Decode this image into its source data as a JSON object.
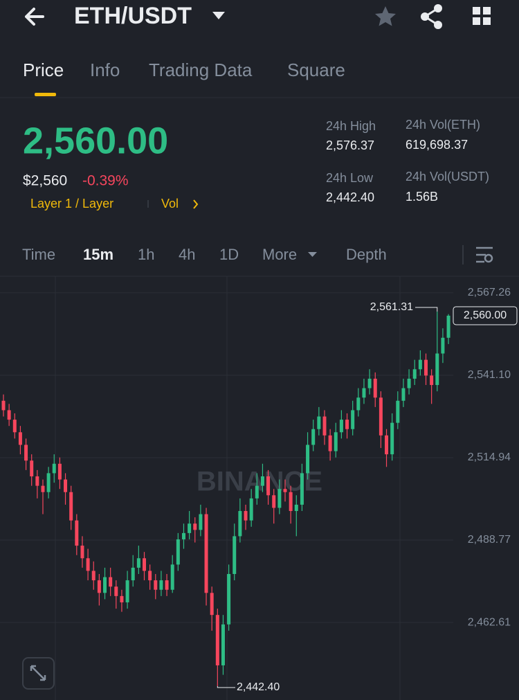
{
  "header": {
    "pair": "ETH/USDT"
  },
  "tabs": [
    "Price",
    "Info",
    "Trading Data",
    "Square"
  ],
  "price": {
    "last": "2,560.00",
    "fiat": "$2,560",
    "change": "-0.39%",
    "tags": [
      "Layer 1 / Layer",
      "Vol"
    ]
  },
  "stats": [
    {
      "label": "24h High",
      "value": "2,576.37"
    },
    {
      "label": "24h Vol(ETH)",
      "value": "619,698.37"
    },
    {
      "label": "24h Low",
      "value": "2,442.40"
    },
    {
      "label": "24h Vol(USDT)",
      "value": "1.56B"
    }
  ],
  "timeframes": [
    "Time",
    "15m",
    "1h",
    "4h",
    "1D",
    "More",
    "Depth"
  ],
  "watermark": "BINANCE",
  "chart_data": {
    "type": "candlestick",
    "up_color": "#2ebd85",
    "down_color": "#f6465d",
    "grid": true,
    "ylim": [
      2438,
      2572.3
    ],
    "yticks": [
      {
        "value": 2462.61,
        "label": "2,462.61"
      },
      {
        "value": 2488.77,
        "label": "2,488.77"
      },
      {
        "value": 2514.94,
        "label": "2,514.94"
      },
      {
        "value": 2541.1,
        "label": "2,541.10"
      },
      {
        "value": 2567.26,
        "label": "2,567.26"
      }
    ],
    "high_marker": {
      "value": 2561.31,
      "label": "2,561.31"
    },
    "low_marker": {
      "value": 2442.4,
      "label": "2,442.40"
    },
    "last_marker": {
      "value": 2560,
      "label": "2,560.00"
    },
    "open": [
      2533,
      2530,
      2527,
      2523,
      2519,
      2514,
      2509,
      2506,
      2504,
      2510,
      2513,
      2508,
      2504,
      2495,
      2487,
      2483,
      2479,
      2476,
      2472,
      2477,
      2474,
      2471,
      2469,
      2476,
      2480,
      2483,
      2479,
      2476,
      2473,
      2476,
      2473,
      2481,
      2489,
      2491,
      2494,
      2492,
      2497,
      2472,
      2465,
      2449,
      2462,
      2478,
      2490,
      2498,
      2495,
      2502,
      2506,
      2509,
      2503,
      2499,
      2505,
      2504,
      2498,
      2500,
      2510,
      2519,
      2524,
      2528,
      2522,
      2517,
      2523,
      2527,
      2524,
      2530,
      2534,
      2537,
      2540,
      2534,
      2522,
      2516,
      2526,
      2533,
      2537,
      2540,
      2543,
      2546,
      2541,
      2538,
      2548,
      2553
    ],
    "high": [
      2535,
      2532,
      2529,
      2525,
      2521,
      2516,
      2511,
      2508,
      2512,
      2516,
      2515,
      2510,
      2506,
      2497,
      2490,
      2486,
      2482,
      2478,
      2480,
      2480,
      2476,
      2473,
      2479,
      2484,
      2487,
      2485,
      2481,
      2478,
      2479,
      2478,
      2484,
      2491,
      2494,
      2498,
      2496,
      2500,
      2499,
      2474,
      2467,
      2465,
      2481,
      2494,
      2502,
      2500,
      2505,
      2510,
      2513,
      2511,
      2505,
      2508,
      2508,
      2506,
      2503,
      2513,
      2523,
      2527,
      2531,
      2530,
      2524,
      2526,
      2530,
      2529,
      2533,
      2537,
      2540,
      2543,
      2542,
      2536,
      2524,
      2529,
      2536,
      2540,
      2543,
      2546,
      2549,
      2548,
      2543,
      2561.31,
      2556,
      2560.5
    ],
    "low": [
      2528,
      2525,
      2521,
      2516,
      2511,
      2506,
      2502,
      2497,
      2502,
      2507,
      2505,
      2500,
      2492,
      2484,
      2480,
      2476,
      2473,
      2468,
      2470,
      2471,
      2467,
      2466,
      2467,
      2474,
      2478,
      2476,
      2473,
      2470,
      2471,
      2471,
      2472,
      2479,
      2486,
      2489,
      2488,
      2490,
      2468,
      2460,
      2442.4,
      2446,
      2460,
      2476,
      2488,
      2492,
      2493,
      2500,
      2504,
      2500,
      2494,
      2497,
      2501,
      2494,
      2490,
      2498,
      2508,
      2517,
      2522,
      2519,
      2514,
      2515,
      2521,
      2521,
      2522,
      2528,
      2532,
      2535,
      2531,
      2518,
      2512,
      2514,
      2524,
      2531,
      2535,
      2538,
      2541,
      2538,
      2532,
      2536,
      2545,
      2551
    ],
    "close": [
      2530,
      2527,
      2523,
      2519,
      2514,
      2509,
      2506,
      2504,
      2510,
      2513,
      2508,
      2504,
      2495,
      2487,
      2483,
      2479,
      2476,
      2472,
      2477,
      2474,
      2471,
      2469,
      2476,
      2480,
      2483,
      2479,
      2476,
      2473,
      2476,
      2473,
      2481,
      2489,
      2491,
      2494,
      2492,
      2497,
      2472,
      2465,
      2449,
      2462,
      2478,
      2490,
      2498,
      2495,
      2502,
      2506,
      2509,
      2503,
      2499,
      2505,
      2504,
      2498,
      2500,
      2510,
      2519,
      2524,
      2528,
      2522,
      2517,
      2523,
      2527,
      2524,
      2530,
      2534,
      2537,
      2540,
      2534,
      2522,
      2516,
      2526,
      2533,
      2537,
      2540,
      2543,
      2546,
      2541,
      2538,
      2548,
      2553,
      2560
    ]
  }
}
